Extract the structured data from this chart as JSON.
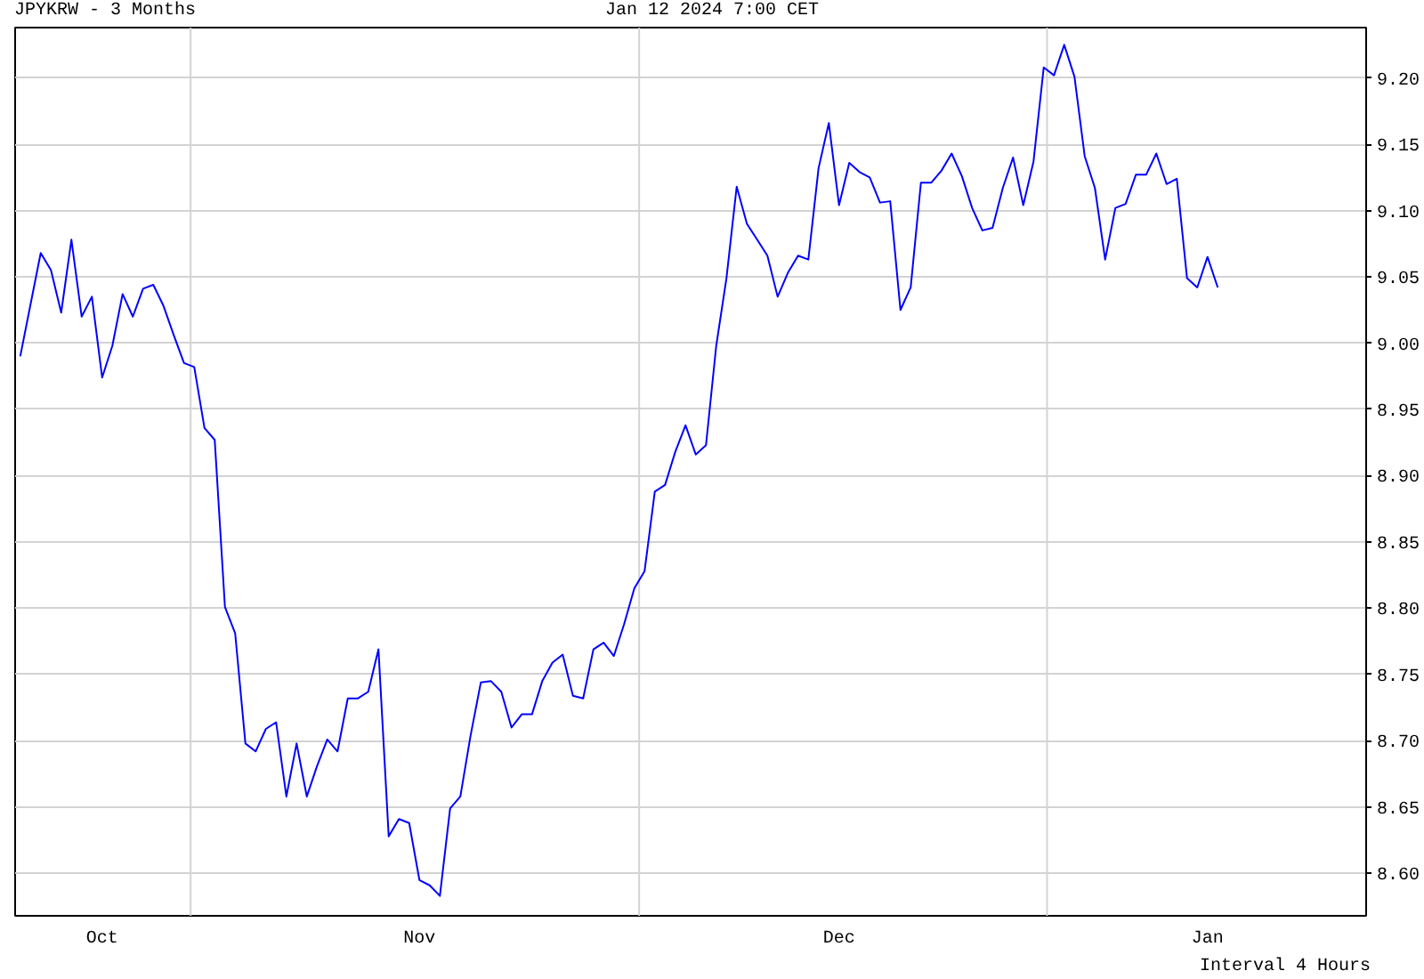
{
  "chart_data": {
    "type": "line",
    "title": "JPYKRW - 3 Months",
    "subtitle": "Jan 12 2024 7:00 CET",
    "annotations": [
      "Interval 4 Hours"
    ],
    "categories": [
      null,
      null,
      null,
      null,
      null,
      null,
      null,
      null,
      "Oct",
      null,
      null,
      null,
      null,
      null,
      null,
      null,
      null,
      null,
      null,
      null,
      null,
      null,
      null,
      null,
      null,
      null,
      null,
      null,
      null,
      null,
      null,
      null,
      null,
      null,
      null,
      null,
      null,
      null,
      null,
      "Nov",
      null,
      null,
      null,
      null,
      null,
      null,
      null,
      null,
      null,
      null,
      null,
      null,
      null,
      null,
      null,
      null,
      null,
      null,
      null,
      null,
      null,
      null,
      null,
      null,
      null,
      null,
      null,
      null,
      null,
      null,
      null,
      null,
      null,
      null,
      null,
      null,
      null,
      null,
      null,
      null,
      "Dec",
      null,
      null,
      null,
      null,
      null,
      null,
      null,
      null,
      null,
      null,
      null,
      null,
      null,
      null,
      null,
      null,
      null,
      null,
      null,
      null,
      null,
      null,
      null,
      null,
      null,
      null,
      null,
      null,
      null,
      null,
      null,
      null,
      null,
      null,
      null,
      "Jan",
      null,
      null,
      null,
      null,
      null,
      null,
      null,
      null,
      null,
      null,
      null,
      null,
      null,
      null,
      null
    ],
    "series": [
      {
        "color": "#0000ff",
        "values": [
          8.99,
          9.029,
          9.068,
          9.055,
          9.023,
          9.078,
          9.02,
          9.035,
          8.974,
          8.998,
          9.037,
          9.02,
          9.041,
          9.044,
          9.028,
          9.006,
          8.985,
          8.982,
          8.936,
          8.927,
          8.801,
          8.781,
          8.698,
          8.692,
          8.709,
          8.714,
          8.658,
          8.698,
          8.658,
          8.681,
          8.701,
          8.692,
          8.732,
          8.732,
          8.737,
          8.769,
          8.628,
          8.641,
          8.638,
          8.595,
          8.591,
          8.583,
          8.649,
          8.658,
          8.704,
          8.744,
          8.745,
          8.737,
          8.71,
          8.72,
          8.72,
          8.745,
          8.759,
          8.765,
          8.734,
          8.732,
          8.769,
          8.774,
          8.764,
          8.788,
          8.815,
          8.828,
          8.888,
          8.893,
          8.918,
          8.938,
          8.916,
          8.923,
          8.998,
          9.049,
          9.118,
          9.09,
          9.078,
          9.066,
          9.035,
          9.053,
          9.066,
          9.063,
          9.132,
          9.166,
          9.104,
          9.136,
          9.129,
          9.125,
          9.106,
          9.107,
          9.025,
          9.042,
          9.121,
          9.121,
          9.13,
          9.143,
          9.126,
          9.102,
          9.085,
          9.087,
          9.117,
          9.14,
          9.104,
          9.137,
          9.208,
          9.202,
          9.225,
          9.201,
          9.141,
          9.117,
          9.063,
          9.102,
          9.105,
          9.127,
          9.127,
          9.143,
          9.12,
          9.124,
          9.049,
          9.042,
          9.065,
          9.042,
          null,
          null,
          null,
          null,
          null,
          null,
          null,
          null,
          null,
          null,
          null,
          null,
          null,
          null
        ]
      }
    ],
    "ylim": [
      8.568,
      9.238
    ],
    "yticks": [
      {
        "value": 8.6,
        "label": "8.60"
      },
      8.65,
      {
        "value": 8.7,
        "label": "8.70"
      },
      8.75,
      {
        "value": 8.8,
        "label": "8.80"
      },
      8.85,
      {
        "value": 8.9,
        "label": "8.90"
      },
      8.95,
      {
        "value": 9.0,
        "label": "9.00"
      },
      9.05,
      {
        "value": 9.1,
        "label": "9.10"
      },
      9.15,
      {
        "value": 9.2,
        "label": "9.20"
      }
    ],
    "grid": "y"
  }
}
